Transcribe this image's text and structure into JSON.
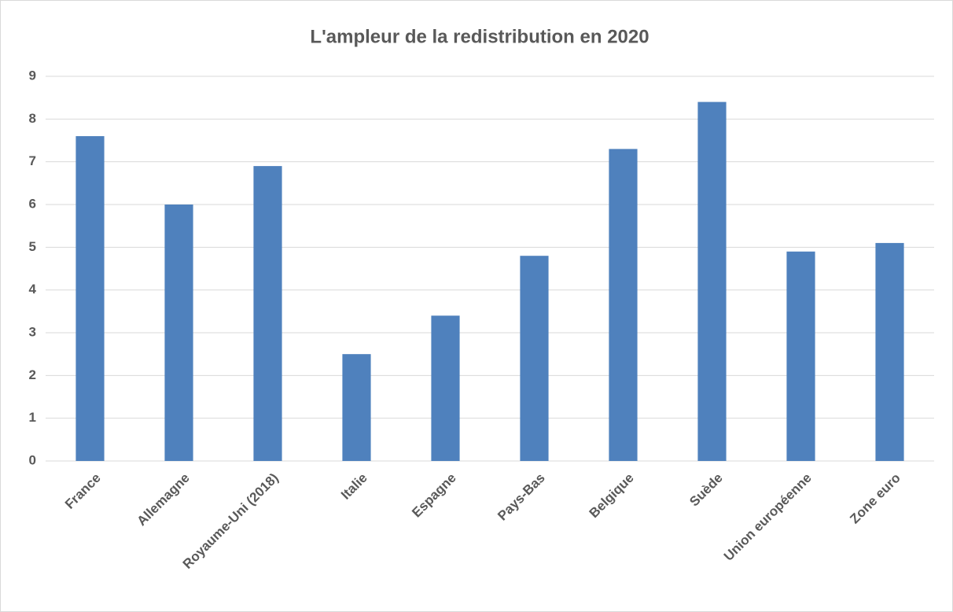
{
  "chart_data": {
    "type": "bar",
    "title": "L'ampleur de la redistribution en 2020",
    "categories": [
      "France",
      "Allemagne",
      "Royaume-Uni (2018)",
      "Italie",
      "Espagne",
      "Pays-Bas",
      "Belgique",
      "Suède",
      "Union européenne",
      "Zone euro"
    ],
    "values": [
      7.6,
      6.0,
      6.9,
      2.5,
      3.4,
      4.8,
      7.3,
      8.4,
      4.9,
      5.1
    ],
    "color": "#4f81bd",
    "ylim": [
      0,
      9
    ],
    "yticks": [
      0,
      1,
      2,
      3,
      4,
      5,
      6,
      7,
      8,
      9
    ],
    "grid": true
  }
}
